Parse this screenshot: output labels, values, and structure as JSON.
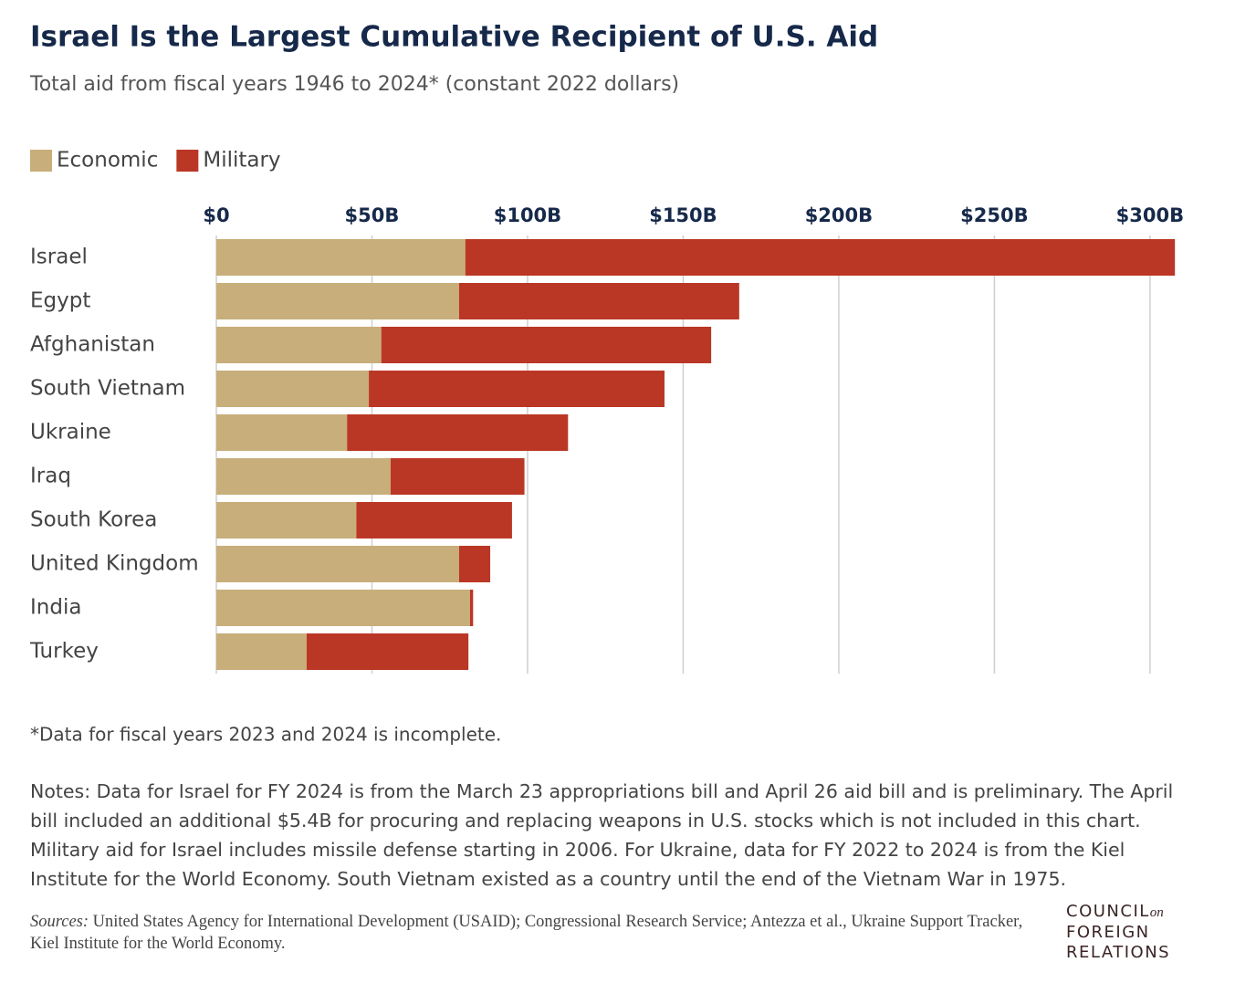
{
  "chart_data": {
    "type": "stacked-bar-horizontal",
    "title": "Israel Is the Largest Cumulative Recipient of U.S. Aid",
    "subtitle": "Total aid from fiscal years 1946 to 2024* (constant 2022 dollars)",
    "categories": [
      "Israel",
      "Egypt",
      "Afghanistan",
      "South Vietnam",
      "Ukraine",
      "Iraq",
      "South Korea",
      "United Kingdom",
      "India",
      "Turkey"
    ],
    "series": [
      {
        "name": "Economic",
        "color": "#c8ae7a",
        "values": [
          80,
          78,
          53,
          49,
          42,
          56,
          45,
          78,
          81.5,
          29
        ]
      },
      {
        "name": "Military",
        "color": "#bb3725",
        "values": [
          228,
          90,
          106,
          95,
          71,
          43,
          50,
          10,
          1,
          52
        ]
      }
    ],
    "xlim": [
      0,
      310
    ],
    "xticks": [
      {
        "value": 0,
        "label": "$0"
      },
      {
        "value": 50,
        "label": "$50B"
      },
      {
        "value": 100,
        "label": "$100B"
      },
      {
        "value": 150,
        "label": "$150B"
      },
      {
        "value": 200,
        "label": "$200B"
      },
      {
        "value": 250,
        "label": "$250B"
      },
      {
        "value": 300,
        "label": "$300B"
      }
    ],
    "grid": true,
    "legend": "top-left",
    "footnote": "*Data for fiscal years 2023 and 2024 is incomplete.",
    "notes": "Notes: Data for Israel for FY 2024 is from the March 23 appropriations bill and April 26 aid bill and is preliminary. The April bill included an additional $5.4B for procuring and replacing weapons in U.S. stocks which is not included in this chart. Military aid for Israel includes missile defense starting in 2006. For Ukraine, data for FY 2022 to 2024 is from the Kiel Institute for the World Economy. South Vietnam existed as a country until the end of the Vietnam War in 1975.",
    "sources_label": "Sources:",
    "sources": "United States Agency for International Development (USAID); Congressional Research Service; Antezza et al., Ukraine Support Tracker, Kiel Institute for the World Economy.",
    "logo": [
      "COUNCIL",
      "on",
      "FOREIGN",
      "RELATIONS"
    ]
  }
}
